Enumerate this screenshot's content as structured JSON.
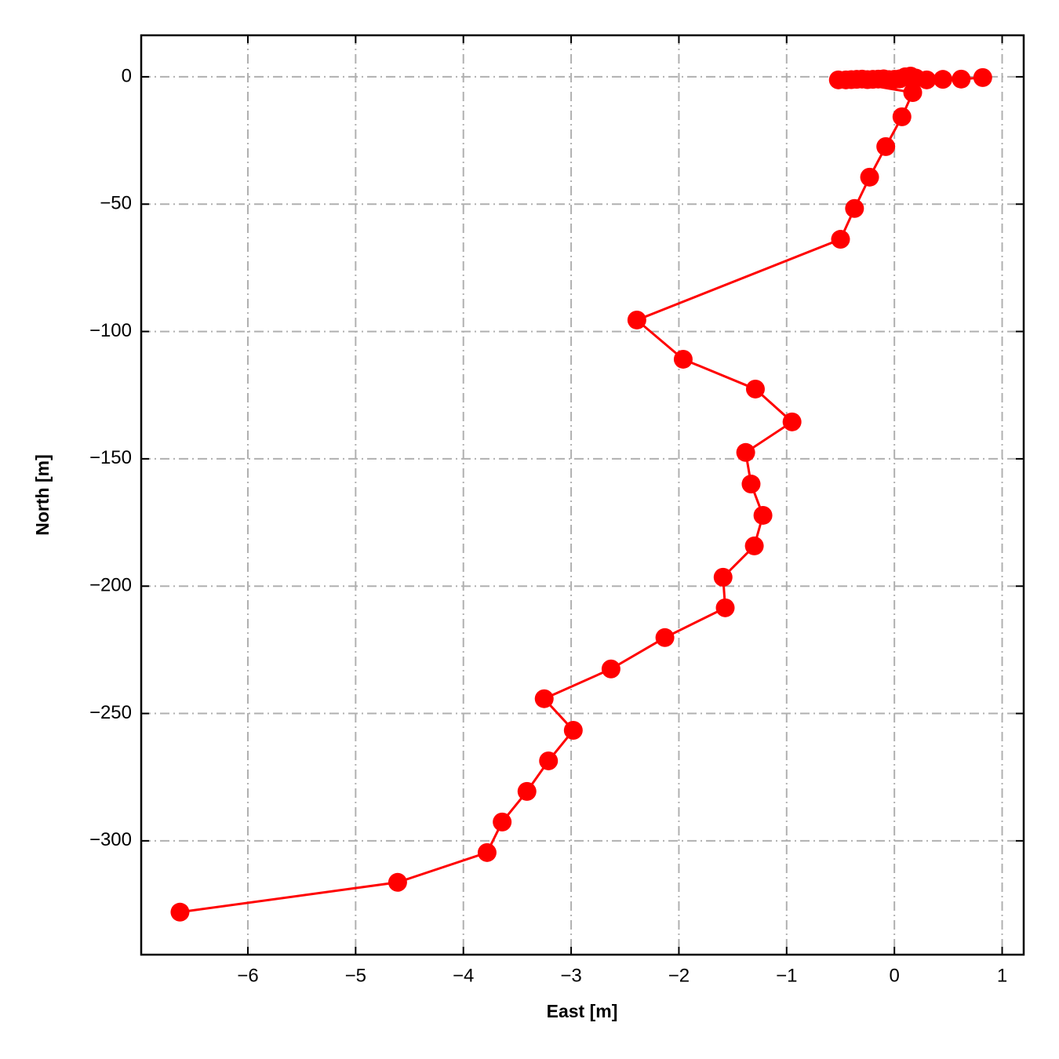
{
  "chart_data": {
    "type": "line",
    "x_label": "East [m]",
    "y_label": "North [m]",
    "color": "#ff0000",
    "grid": true,
    "xlim": [
      -6.99,
      1.2
    ],
    "ylim": [
      -344.7,
      16.3
    ],
    "xticks": [
      {
        "value": -6,
        "label": "−6"
      },
      {
        "value": -5,
        "label": "−5"
      },
      {
        "value": -4,
        "label": "−4"
      },
      {
        "value": -3,
        "label": "−3"
      },
      {
        "value": -2,
        "label": "−2"
      },
      {
        "value": -1,
        "label": "−1"
      },
      0,
      1
    ],
    "yticks": [
      0,
      {
        "value": -50,
        "label": "−50"
      },
      {
        "value": -100,
        "label": "−100"
      },
      {
        "value": -150,
        "label": "−150"
      },
      {
        "value": -200,
        "label": "−200"
      },
      {
        "value": -250,
        "label": "−250"
      },
      {
        "value": -300,
        "label": "−300"
      }
    ],
    "x": [
      0.82,
      0.62,
      0.45,
      0.3,
      0.2,
      0.15,
      0.1,
      0.05,
      0.0,
      -0.05,
      -0.1,
      -0.15,
      -0.2,
      -0.25,
      -0.3,
      -0.35,
      -0.4,
      -0.45,
      -0.52,
      0.17,
      0.07,
      -0.08,
      -0.23,
      -0.37,
      -0.5,
      -2.39,
      -1.96,
      -1.29,
      -0.95,
      -1.38,
      -1.33,
      -1.22,
      -1.3,
      -1.59,
      -1.57,
      -2.13,
      -2.63,
      -3.25,
      -2.98,
      -3.21,
      -3.41,
      -3.64,
      -3.78,
      -4.61,
      -6.63
    ],
    "y": [
      -0.3,
      -0.9,
      -1.0,
      -1.2,
      -0.5,
      0.3,
      0.0,
      -0.8,
      -1.0,
      -1.1,
      -0.8,
      -0.9,
      -1.0,
      -1.1,
      -0.9,
      -1.0,
      -1.1,
      -1.2,
      -1.2,
      -6.2,
      -15.7,
      -27.4,
      -39.4,
      -51.7,
      -63.8,
      -95.5,
      -110.9,
      -122.6,
      -135.5,
      -147.5,
      -159.9,
      -172.2,
      -184.2,
      -196.5,
      -208.5,
      -220.2,
      -232.5,
      -244.2,
      -256.6,
      -268.6,
      -280.6,
      -292.6,
      -304.6,
      -316.3,
      -328.0
    ]
  }
}
